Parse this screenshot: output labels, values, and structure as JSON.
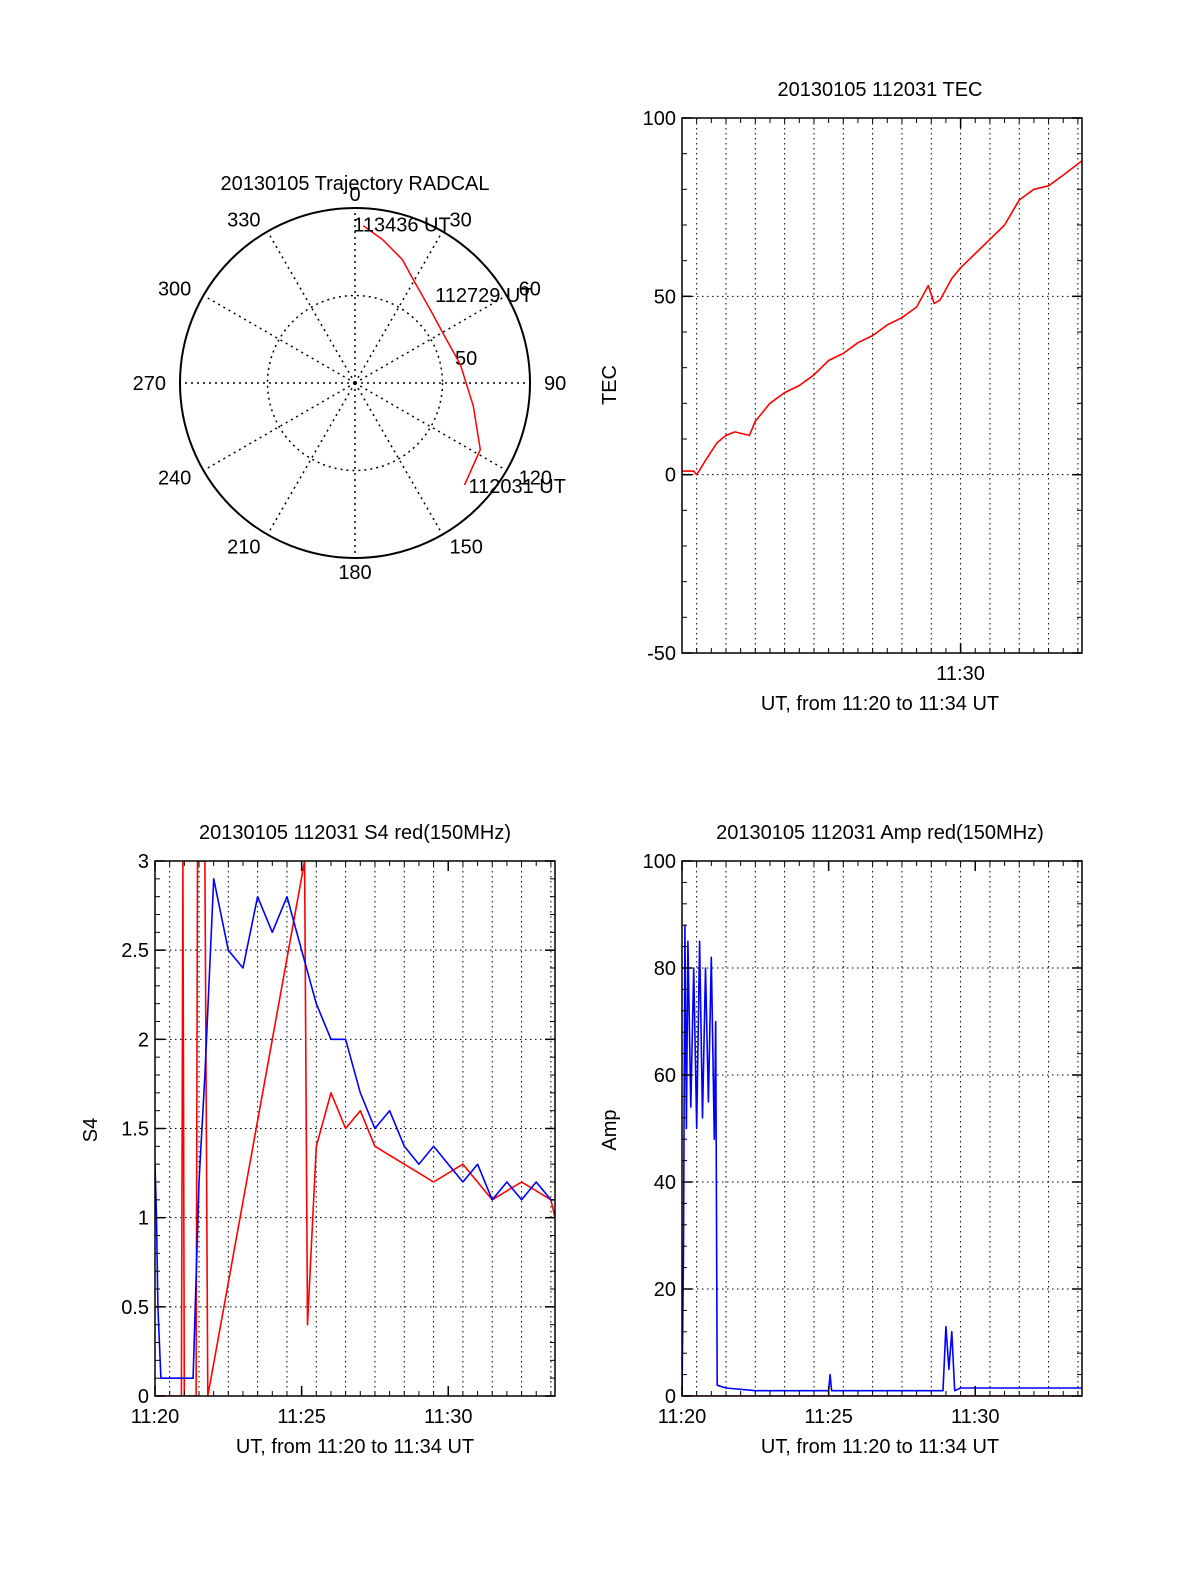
{
  "colors": {
    "red": "#ff0000",
    "blue": "#0000ff",
    "axis": "#000000",
    "grid": "#000000"
  },
  "chart_data": [
    {
      "id": "polar",
      "type": "polar",
      "title": "20130105 Trajectory RADCAL",
      "azimuth_labels": [
        "0",
        "30",
        "60",
        "90",
        "120",
        "150",
        "180",
        "210",
        "240",
        "270",
        "300",
        "330"
      ],
      "ring_labels": [
        "50"
      ],
      "r_max": 90,
      "ring_values": [
        0,
        45,
        90
      ],
      "trajectory": {
        "color": "red",
        "points": [
          [
            3,
            81
          ],
          [
            11,
            75
          ],
          [
            21,
            68
          ],
          [
            28,
            62
          ],
          [
            46,
            54
          ],
          [
            63,
            52
          ],
          [
            80,
            55
          ],
          [
            101,
            62
          ],
          [
            118,
            73
          ],
          [
            133,
            77
          ]
        ]
      },
      "annotations": [
        {
          "text": "113436 UT",
          "az": 3,
          "r": 81
        },
        {
          "text": "112729 UT",
          "az": 63,
          "r": 52
        },
        {
          "text": "112031 UT",
          "az": 133,
          "r": 77
        }
      ]
    },
    {
      "id": "tec",
      "type": "line",
      "title": "20130105 112031 TEC",
      "xlabel": "UT, from 11:20 to 11:34 UT",
      "ylabel": "TEC",
      "xlim": [
        20.5,
        34.14
      ],
      "ylim": [
        -50,
        100
      ],
      "yticks": [
        -50,
        0,
        50,
        100
      ],
      "xticks": [
        {
          "value": 30,
          "label": "11:30"
        }
      ],
      "xgrid": [
        21,
        22,
        23,
        24,
        25,
        26,
        27,
        28,
        29,
        30,
        31,
        32,
        33,
        34
      ],
      "ygrid": [
        0,
        50
      ],
      "series": [
        {
          "color": "red",
          "x": [
            20.5,
            20.9,
            21.0,
            21.3,
            21.7,
            22.0,
            22.3,
            22.8,
            23.0,
            23.5,
            24.0,
            24.5,
            25.0,
            25.5,
            26.0,
            26.5,
            27.0,
            27.5,
            28.0,
            28.5,
            28.9,
            29.1,
            29.3,
            29.5,
            29.7,
            30.0,
            30.5,
            31.0,
            31.5,
            32.0,
            32.5,
            33.0,
            33.5,
            34.14
          ],
          "y": [
            1,
            1,
            0,
            4,
            9,
            11,
            12,
            11,
            15,
            20,
            23,
            25,
            28,
            32,
            34,
            37,
            39,
            42,
            44,
            47,
            53,
            48,
            49,
            52,
            55,
            58,
            62,
            66,
            70,
            77,
            80,
            81,
            84,
            88
          ]
        }
      ]
    },
    {
      "id": "s4",
      "type": "line",
      "title": "20130105 112031 S4 red(150MHz)",
      "xlabel": "UT, from 11:20 to 11:34 UT",
      "ylabel": "S4",
      "xlim": [
        20.5,
        34.14
      ],
      "ylim": [
        0,
        3
      ],
      "yticks": [
        0,
        0.5,
        1,
        1.5,
        2,
        2.5,
        3
      ],
      "ytick_labels": [
        "0",
        "0.5",
        "1",
        "1.5",
        "2",
        "2.5",
        "3"
      ],
      "xticks": [
        {
          "value": 20.5,
          "label": "11:20"
        },
        {
          "value": 25.5,
          "label": "11:25"
        },
        {
          "value": 30.5,
          "label": "11:30"
        }
      ],
      "xgrid": [
        21,
        22,
        23,
        24,
        25,
        26,
        27,
        28,
        29,
        30,
        31,
        32,
        33,
        34
      ],
      "ygrid": [
        0.5,
        1,
        1.5,
        2,
        2.5
      ],
      "series": [
        {
          "color": "red",
          "x": [
            20.5,
            21.4,
            21.45,
            21.5,
            21.9,
            21.95,
            22.2,
            22.3,
            25.6,
            25.7,
            26.0,
            26.5,
            27.0,
            27.5,
            28.0,
            29.0,
            30.0,
            31.0,
            32.0,
            33.0,
            34.0,
            34.14
          ],
          "y": [
            0,
            0,
            3,
            0,
            0,
            3,
            3,
            0,
            3,
            0.4,
            1.4,
            1.7,
            1.5,
            1.6,
            1.4,
            1.3,
            1.2,
            1.3,
            1.1,
            1.2,
            1.1,
            1.0
          ]
        },
        {
          "color": "blue",
          "x": [
            20.5,
            20.55,
            20.6,
            20.7,
            21.0,
            21.5,
            21.8,
            22.0,
            22.2,
            22.5,
            23.0,
            23.5,
            24.0,
            24.5,
            25.0,
            25.5,
            26.0,
            26.5,
            27.0,
            27.5,
            28.0,
            28.5,
            29.0,
            29.5,
            30.0,
            30.5,
            31.0,
            31.5,
            32.0,
            32.5,
            33.0,
            33.5,
            34.0,
            34.14
          ],
          "y": [
            1.3,
            1.0,
            0.5,
            0.1,
            0.1,
            0.1,
            0.1,
            1.2,
            1.8,
            2.9,
            2.5,
            2.4,
            2.8,
            2.6,
            2.8,
            2.5,
            2.2,
            2.0,
            2.0,
            1.7,
            1.5,
            1.6,
            1.4,
            1.3,
            1.4,
            1.3,
            1.2,
            1.3,
            1.1,
            1.2,
            1.1,
            1.2,
            1.1,
            1.1
          ]
        }
      ]
    },
    {
      "id": "amp",
      "type": "line",
      "title": "20130105 112031 Amp red(150MHz)",
      "xlabel": "UT, from 11:20 to 11:34 UT",
      "ylabel": "Amp",
      "xlim": [
        20.5,
        34.14
      ],
      "ylim": [
        0,
        100
      ],
      "yticks": [
        0,
        20,
        40,
        60,
        80,
        100
      ],
      "xticks": [
        {
          "value": 20.5,
          "label": "11:20"
        },
        {
          "value": 25.5,
          "label": "11:25"
        },
        {
          "value": 30.5,
          "label": "11:30"
        }
      ],
      "xgrid": [
        21,
        22,
        23,
        24,
        25,
        26,
        27,
        28,
        29,
        30,
        31,
        32,
        33,
        34
      ],
      "ygrid": [
        20,
        40,
        60,
        80
      ],
      "series": [
        {
          "color": "red",
          "x": [
            20.5,
            21.9,
            29.6,
            30.0,
            34.14
          ],
          "y": [
            0,
            0,
            0,
            0,
            0
          ]
        },
        {
          "color": "blue",
          "x": [
            20.5,
            20.55,
            20.6,
            20.65,
            20.7,
            20.8,
            20.9,
            21.0,
            21.1,
            21.2,
            21.3,
            21.4,
            21.5,
            21.6,
            21.65,
            21.7,
            22.0,
            23.0,
            24.0,
            25.0,
            25.5,
            25.55,
            25.6,
            26.0,
            27.0,
            28.0,
            29.0,
            29.4,
            29.5,
            29.6,
            29.7,
            29.8,
            30.0,
            31.0,
            32.0,
            33.0,
            34.0,
            34.14
          ],
          "y": [
            0,
            27,
            88,
            50,
            85,
            54,
            80,
            50,
            85,
            52,
            80,
            55,
            82,
            48,
            70,
            2,
            1.5,
            1,
            1,
            1,
            1,
            4,
            1,
            1,
            1,
            1,
            1,
            1,
            13,
            5,
            12,
            1,
            1.5,
            1.5,
            1.5,
            1.5,
            1.5,
            1.5
          ]
        }
      ]
    }
  ]
}
